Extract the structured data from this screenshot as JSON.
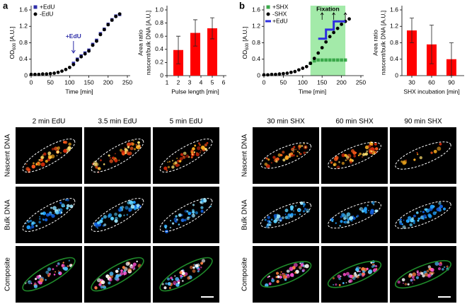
{
  "panel_labels": {
    "a": "a",
    "b": "b"
  },
  "chart_data": [
    {
      "type": "scatter",
      "ylabel_parts": [
        "OD",
        "600",
        "[A.U.]"
      ],
      "xlabel": "Time [min]",
      "xlim": [
        0,
        250
      ],
      "xticks": [
        0,
        50,
        100,
        150,
        200,
        250
      ],
      "ylim": [
        0,
        1.6
      ],
      "yticks": [
        0,
        0.4,
        0.8,
        1.2,
        1.6
      ],
      "legend": "upper left",
      "series": [
        {
          "name": "+EdU",
          "color": "#2e2ea8",
          "marker": "square",
          "x": [
            110,
            120,
            130,
            140,
            150,
            160,
            170,
            180,
            190,
            200,
            210,
            220,
            230
          ],
          "values": [
            0.3,
            0.4,
            0.48,
            0.55,
            0.62,
            0.76,
            0.86,
            1.02,
            1.13,
            1.25,
            1.36,
            1.45,
            1.49
          ]
        },
        {
          "name": "-EdU",
          "color": "#000000",
          "marker": "circle",
          "x": [
            0,
            10,
            20,
            30,
            40,
            50,
            60,
            70,
            80,
            90,
            100,
            110,
            120,
            130,
            140,
            150,
            160,
            170,
            180,
            190,
            200,
            210,
            220,
            230
          ],
          "values": [
            0.03,
            0.03,
            0.03,
            0.04,
            0.04,
            0.05,
            0.06,
            0.08,
            0.11,
            0.15,
            0.2,
            0.27,
            0.38,
            0.46,
            0.53,
            0.6,
            0.74,
            0.84,
            1.0,
            1.12,
            1.24,
            1.35,
            1.44,
            1.5
          ]
        }
      ],
      "annotations": [
        {
          "text": "+EdU",
          "x": 110,
          "y": 0.5
        }
      ]
    },
    {
      "type": "bar",
      "xlabel": "Pulse length [min]",
      "ylabel": [
        "Area ratio",
        "nascent/bulk DNA [A.U.]"
      ],
      "x": [
        2,
        3.5,
        5
      ],
      "values": [
        0.39,
        0.65,
        0.72
      ],
      "errors": [
        0.21,
        0.2,
        0.16
      ],
      "color": "#ff0000",
      "xlim": [
        1,
        6
      ],
      "xticks": [
        1,
        2,
        3,
        4,
        5,
        6
      ],
      "ylim": [
        0,
        1
      ],
      "yticks": [
        0,
        0.2,
        0.4,
        0.6,
        0.8,
        {
          "value": 1,
          "label": "1.0"
        }
      ]
    },
    {
      "type": "scatter",
      "ylabel_parts": [
        "OD",
        "600",
        "[A.U.]"
      ],
      "xlabel": "Time [min]",
      "xlim": [
        0,
        250
      ],
      "xticks": [
        0,
        50,
        100,
        150,
        200,
        250
      ],
      "ylim": [
        0,
        1.6
      ],
      "yticks": [
        0,
        0.4,
        0.8,
        1.2,
        1.6
      ],
      "legend": "upper left",
      "shade": [
        120,
        210
      ],
      "shade_color": "#a3eaa9",
      "shade_label": "Fixation",
      "fixation_times": [
        150,
        180,
        210
      ],
      "series": [
        {
          "name": "+SHX",
          "color": "#3aa84a",
          "marker": "square",
          "x": [
            120,
            130,
            140,
            150,
            160,
            170,
            180,
            190,
            200,
            210
          ],
          "values": [
            0.3,
            0.36,
            0.38,
            0.38,
            0.38,
            0.38,
            0.38,
            0.38,
            0.38,
            0.38
          ]
        },
        {
          "name": "-SHX",
          "color": "#000000",
          "marker": "circle",
          "x": [
            0,
            10,
            20,
            30,
            40,
            50,
            60,
            70,
            80,
            90,
            100,
            110,
            120,
            130,
            140,
            150,
            160,
            170,
            180,
            190,
            200,
            210,
            220
          ],
          "values": [
            0.02,
            0.02,
            0.03,
            0.03,
            0.04,
            0.05,
            0.06,
            0.08,
            0.1,
            0.14,
            0.18,
            0.22,
            0.3,
            0.42,
            0.55,
            0.68,
            0.82,
            0.95,
            1.05,
            1.15,
            1.25,
            1.32,
            1.38
          ]
        },
        {
          "name": "+EdU",
          "color": "#2e2ee0",
          "marker": "line",
          "x": [
            140,
            160,
            160,
            180,
            180,
            210
          ],
          "values": [
            0.9,
            0.9,
            1.12,
            1.12,
            1.32,
            1.32
          ]
        }
      ]
    },
    {
      "type": "bar",
      "xlabel": "SHX incubation [min]",
      "ylabel": [
        "Area ratio",
        "nascent/bulk DNA [A.U.]"
      ],
      "categories": [
        "30",
        "60",
        "90"
      ],
      "values": [
        1.1,
        0.76,
        0.4
      ],
      "errors": [
        0.3,
        0.47,
        0.4
      ],
      "color": "#ff0000",
      "ylim": [
        0,
        1.6
      ],
      "yticks": [
        0,
        0.4,
        0.8,
        1.2,
        1.6
      ]
    }
  ],
  "image_grids": [
    {
      "columns": [
        "2 min EdU",
        "3.5 min EdU",
        "5 min EdU"
      ],
      "rows": [
        "Nascent DNA",
        "Bulk DNA",
        "Composite"
      ]
    },
    {
      "columns": [
        "30 min SHX",
        "60 min SHX",
        "90 min SHX"
      ],
      "rows": [
        "Nascent DNA",
        "Bulk DNA",
        "Composite"
      ]
    }
  ]
}
